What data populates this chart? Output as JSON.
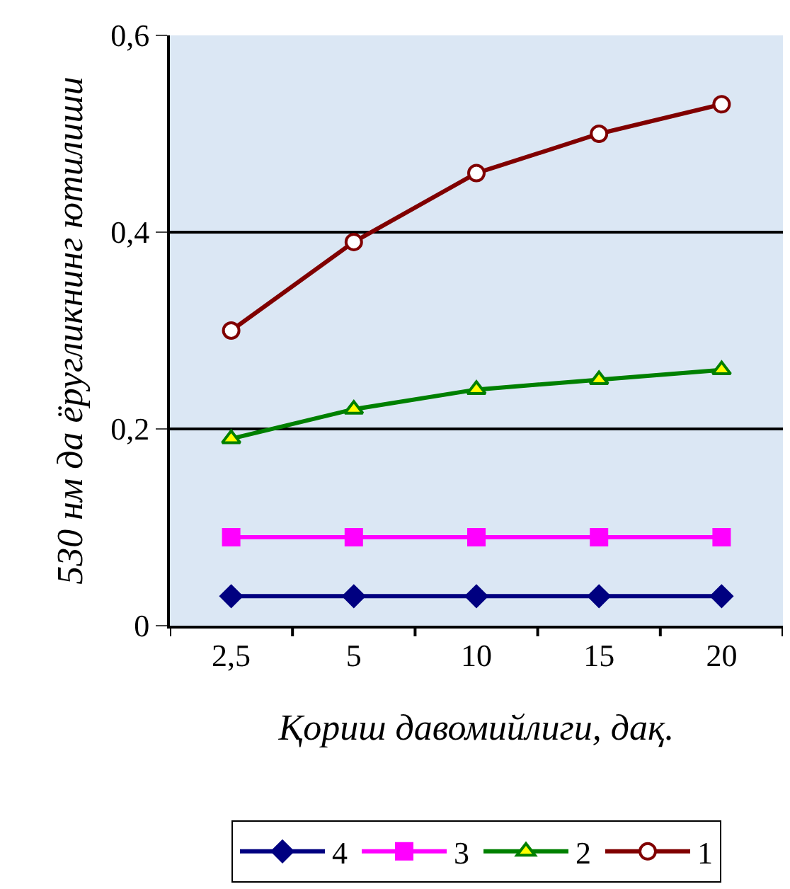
{
  "chart_data": {
    "type": "line",
    "xlabel": "Қориш давомийлиги, дақ.",
    "ylabel": "530 нм да ёругликнинг ютилиши",
    "categories": [
      "2,5",
      "5",
      "10",
      "15",
      "20"
    ],
    "series": [
      {
        "name": "4",
        "color": "#000080",
        "marker": "diamond",
        "values": [
          0.03,
          0.03,
          0.03,
          0.03,
          0.03
        ]
      },
      {
        "name": "3",
        "color": "#ff00ff",
        "marker": "square",
        "values": [
          0.09,
          0.09,
          0.09,
          0.09,
          0.09
        ]
      },
      {
        "name": "2",
        "color": "#008000",
        "marker": "triangle",
        "values": [
          0.19,
          0.22,
          0.24,
          0.25,
          0.26
        ]
      },
      {
        "name": "1",
        "color": "#800000",
        "marker": "circle",
        "values": [
          0.3,
          0.39,
          0.46,
          0.5,
          0.53
        ]
      }
    ],
    "ylim": [
      0,
      0.6
    ],
    "yticks": [
      0,
      {
        "value": 0.2,
        "label": "0,2"
      },
      {
        "value": 0.4,
        "label": "0,4"
      },
      {
        "value": 0.6,
        "label": "0,6"
      }
    ],
    "grid": "y",
    "legend": "bottom"
  }
}
